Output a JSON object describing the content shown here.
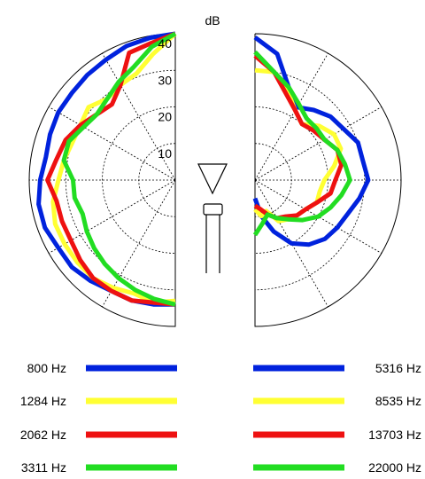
{
  "chart_data": {
    "type": "polar",
    "unit_label": "dB",
    "radial_ticks": [
      "10",
      "20",
      "30",
      "40"
    ],
    "r_range": [
      0,
      40
    ],
    "grid": true,
    "angle_range_deg": [
      0,
      180
    ],
    "angle_step_deg": 10,
    "angle_convention": "0 = front (top), increasing clockwise to 180 = rear (bottom); left half and right half mirror",
    "series": [
      {
        "name": "800 Hz",
        "color": "#0022dd",
        "side": "left",
        "values": [
          40,
          39.5,
          39,
          38,
          37.5,
          37,
          37,
          36.5,
          36,
          37,
          38,
          38,
          37,
          37,
          36,
          35,
          35,
          34.5,
          34
        ]
      },
      {
        "name": "1284 Hz",
        "color": "#ffff33",
        "side": "left",
        "values": [
          40,
          35,
          31,
          30,
          29,
          31,
          30,
          30,
          31,
          32,
          34,
          35,
          35,
          35,
          35,
          34,
          33,
          34,
          33
        ]
      },
      {
        "name": "2062 Hz",
        "color": "#ee1111",
        "side": "left",
        "values": [
          40,
          38,
          37,
          30,
          27,
          28,
          30,
          32,
          33,
          35,
          33,
          33,
          33,
          34,
          35,
          35,
          35,
          34,
          34
        ]
      },
      {
        "name": "3311 Hz",
        "color": "#22dd22",
        "side": "left",
        "values": [
          40,
          37,
          33,
          31,
          29,
          28,
          29,
          31,
          31,
          28,
          28,
          27,
          28,
          29,
          30,
          31,
          32,
          33,
          34
        ]
      },
      {
        "name": "5316 Hz",
        "color": "#0022dd",
        "side": "right",
        "values": [
          39,
          35,
          27,
          23,
          25,
          27,
          28,
          30,
          30,
          31,
          29,
          27,
          26,
          25,
          23,
          20,
          15,
          10,
          5
        ]
      },
      {
        "name": "8535 Hz",
        "color": "#ffff33",
        "side": "right",
        "values": [
          30,
          30,
          26,
          22,
          20,
          23,
          25,
          25,
          22,
          19,
          18,
          18,
          16,
          15,
          14,
          13,
          9,
          10,
          8
        ]
      },
      {
        "name": "13703 Hz",
        "color": "#ee1111",
        "side": "right",
        "values": [
          34,
          30,
          25,
          22,
          20,
          21,
          22,
          24,
          24,
          22,
          21,
          18,
          16,
          15,
          13,
          12,
          10,
          8,
          7
        ]
      },
      {
        "name": "22000 Hz",
        "color": "#22dd22",
        "side": "right",
        "values": [
          35,
          30,
          27,
          24,
          22,
          22,
          22,
          24,
          25,
          26,
          24,
          22,
          20,
          17,
          14,
          12,
          10,
          12,
          15
        ]
      }
    ],
    "legend": {
      "left": [
        "800 Hz",
        "1284 Hz",
        "2062 Hz",
        "3311 Hz"
      ],
      "right": [
        "5316 Hz",
        "8535 Hz",
        "13703 Hz",
        "22000 Hz"
      ],
      "placement": "bottom"
    }
  }
}
